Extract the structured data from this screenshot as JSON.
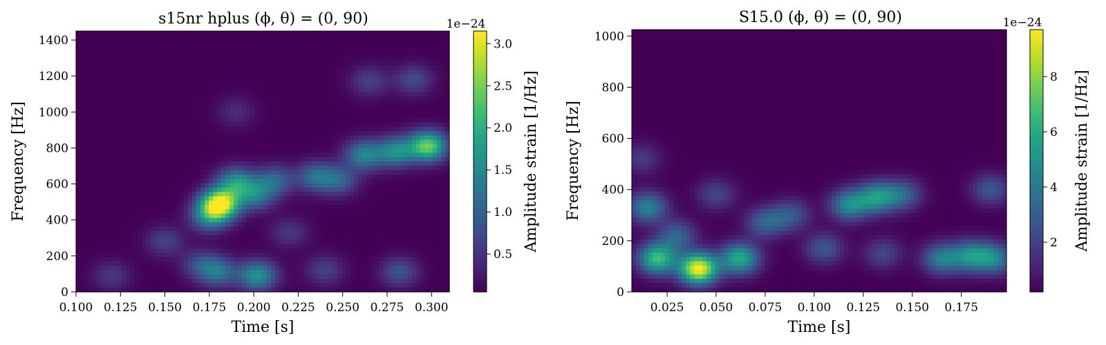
{
  "figure": {
    "background": "#ffffff"
  },
  "chart_data": [
    {
      "type": "heatmap",
      "title": "s15nr hplus  (ϕ, θ) = (0, 90)",
      "xlabel": "Time [s]",
      "ylabel": "Frequency [Hz]",
      "xlim": [
        0.1,
        0.31
      ],
      "ylim": [
        0,
        1450
      ],
      "xticks": [
        "0.100",
        "0.125",
        "0.150",
        "0.175",
        "0.200",
        "0.225",
        "0.250",
        "0.275",
        "0.300"
      ],
      "xtick_values": [
        0.1,
        0.125,
        0.15,
        0.175,
        0.2,
        0.225,
        0.25,
        0.275,
        0.3
      ],
      "yticks": [
        "0",
        "200",
        "400",
        "600",
        "800",
        "1000",
        "1200",
        "1400"
      ],
      "ytick_values": [
        0,
        200,
        400,
        600,
        800,
        1000,
        1200,
        1400
      ],
      "colorscale": "viridis",
      "colorbar": {
        "label": "Amplitude strain [1/Hz]",
        "offset_text": "1e−24",
        "range": [
          0.05,
          3.15
        ],
        "ticks": [
          "0.5",
          "1.0",
          "1.5",
          "2.0",
          "2.5",
          "3.0"
        ],
        "tick_values": [
          0.5,
          1.0,
          1.5,
          2.0,
          2.5,
          3.0
        ]
      },
      "blobs": [
        {
          "t": 0.181,
          "f": 490,
          "amp": 3.1
        },
        {
          "t": 0.19,
          "f": 610,
          "amp": 1.5
        },
        {
          "t": 0.175,
          "f": 420,
          "amp": 1.3
        },
        {
          "t": 0.202,
          "f": 90,
          "amp": 1.6
        },
        {
          "t": 0.18,
          "f": 110,
          "amp": 1.1
        },
        {
          "t": 0.17,
          "f": 150,
          "amp": 0.7
        },
        {
          "t": 0.201,
          "f": 540,
          "amp": 1.2
        },
        {
          "t": 0.212,
          "f": 620,
          "amp": 1.0
        },
        {
          "t": 0.235,
          "f": 640,
          "amp": 1.1
        },
        {
          "t": 0.248,
          "f": 620,
          "amp": 0.9
        },
        {
          "t": 0.262,
          "f": 760,
          "amp": 1.4
        },
        {
          "t": 0.28,
          "f": 780,
          "amp": 1.5
        },
        {
          "t": 0.298,
          "f": 810,
          "amp": 2.4
        },
        {
          "t": 0.29,
          "f": 1180,
          "amp": 0.7
        },
        {
          "t": 0.265,
          "f": 1170,
          "amp": 0.6
        },
        {
          "t": 0.15,
          "f": 280,
          "amp": 0.6
        },
        {
          "t": 0.22,
          "f": 330,
          "amp": 0.5
        },
        {
          "t": 0.24,
          "f": 120,
          "amp": 0.6
        },
        {
          "t": 0.282,
          "f": 110,
          "amp": 0.8
        },
        {
          "t": 0.12,
          "f": 90,
          "amp": 0.5
        },
        {
          "t": 0.19,
          "f": 1000,
          "amp": 0.4
        }
      ]
    },
    {
      "type": "heatmap",
      "title": "S15.0  (ϕ, θ) = (0, 90)",
      "xlabel": "Time [s]",
      "ylabel": "Frequency [Hz]",
      "xlim": [
        0.007,
        0.198
      ],
      "ylim": [
        0,
        1025
      ],
      "xticks": [
        "0.025",
        "0.050",
        "0.075",
        "0.100",
        "0.125",
        "0.150",
        "0.175"
      ],
      "xtick_values": [
        0.025,
        0.05,
        0.075,
        0.1,
        0.125,
        0.15,
        0.175
      ],
      "yticks": [
        "0",
        "200",
        "400",
        "600",
        "800",
        "1000"
      ],
      "ytick_values": [
        0,
        200,
        400,
        600,
        800,
        1000
      ],
      "colorscale": "viridis",
      "colorbar": {
        "label": "Amplitude strain [1/Hz]",
        "offset_text": "1e−24",
        "range": [
          0.2,
          9.7
        ],
        "ticks": [
          "2",
          "4",
          "6",
          "8"
        ],
        "tick_values": [
          2,
          4,
          6,
          8
        ]
      },
      "blobs": [
        {
          "t": 0.041,
          "f": 90,
          "amp": 9.6
        },
        {
          "t": 0.02,
          "f": 130,
          "amp": 6.5
        },
        {
          "t": 0.062,
          "f": 130,
          "amp": 5.8
        },
        {
          "t": 0.015,
          "f": 330,
          "amp": 4.2
        },
        {
          "t": 0.03,
          "f": 220,
          "amp": 3.0
        },
        {
          "t": 0.075,
          "f": 270,
          "amp": 3.0
        },
        {
          "t": 0.088,
          "f": 300,
          "amp": 2.6
        },
        {
          "t": 0.118,
          "f": 340,
          "amp": 4.6
        },
        {
          "t": 0.132,
          "f": 370,
          "amp": 4.8
        },
        {
          "t": 0.145,
          "f": 380,
          "amp": 3.0
        },
        {
          "t": 0.105,
          "f": 170,
          "amp": 2.6
        },
        {
          "t": 0.165,
          "f": 130,
          "amp": 4.0
        },
        {
          "t": 0.18,
          "f": 140,
          "amp": 4.5
        },
        {
          "t": 0.192,
          "f": 130,
          "amp": 4.0
        },
        {
          "t": 0.19,
          "f": 400,
          "amp": 2.6
        },
        {
          "t": 0.135,
          "f": 150,
          "amp": 2.0
        },
        {
          "t": 0.05,
          "f": 380,
          "amp": 2.0
        },
        {
          "t": 0.012,
          "f": 520,
          "amp": 1.6
        }
      ]
    }
  ]
}
